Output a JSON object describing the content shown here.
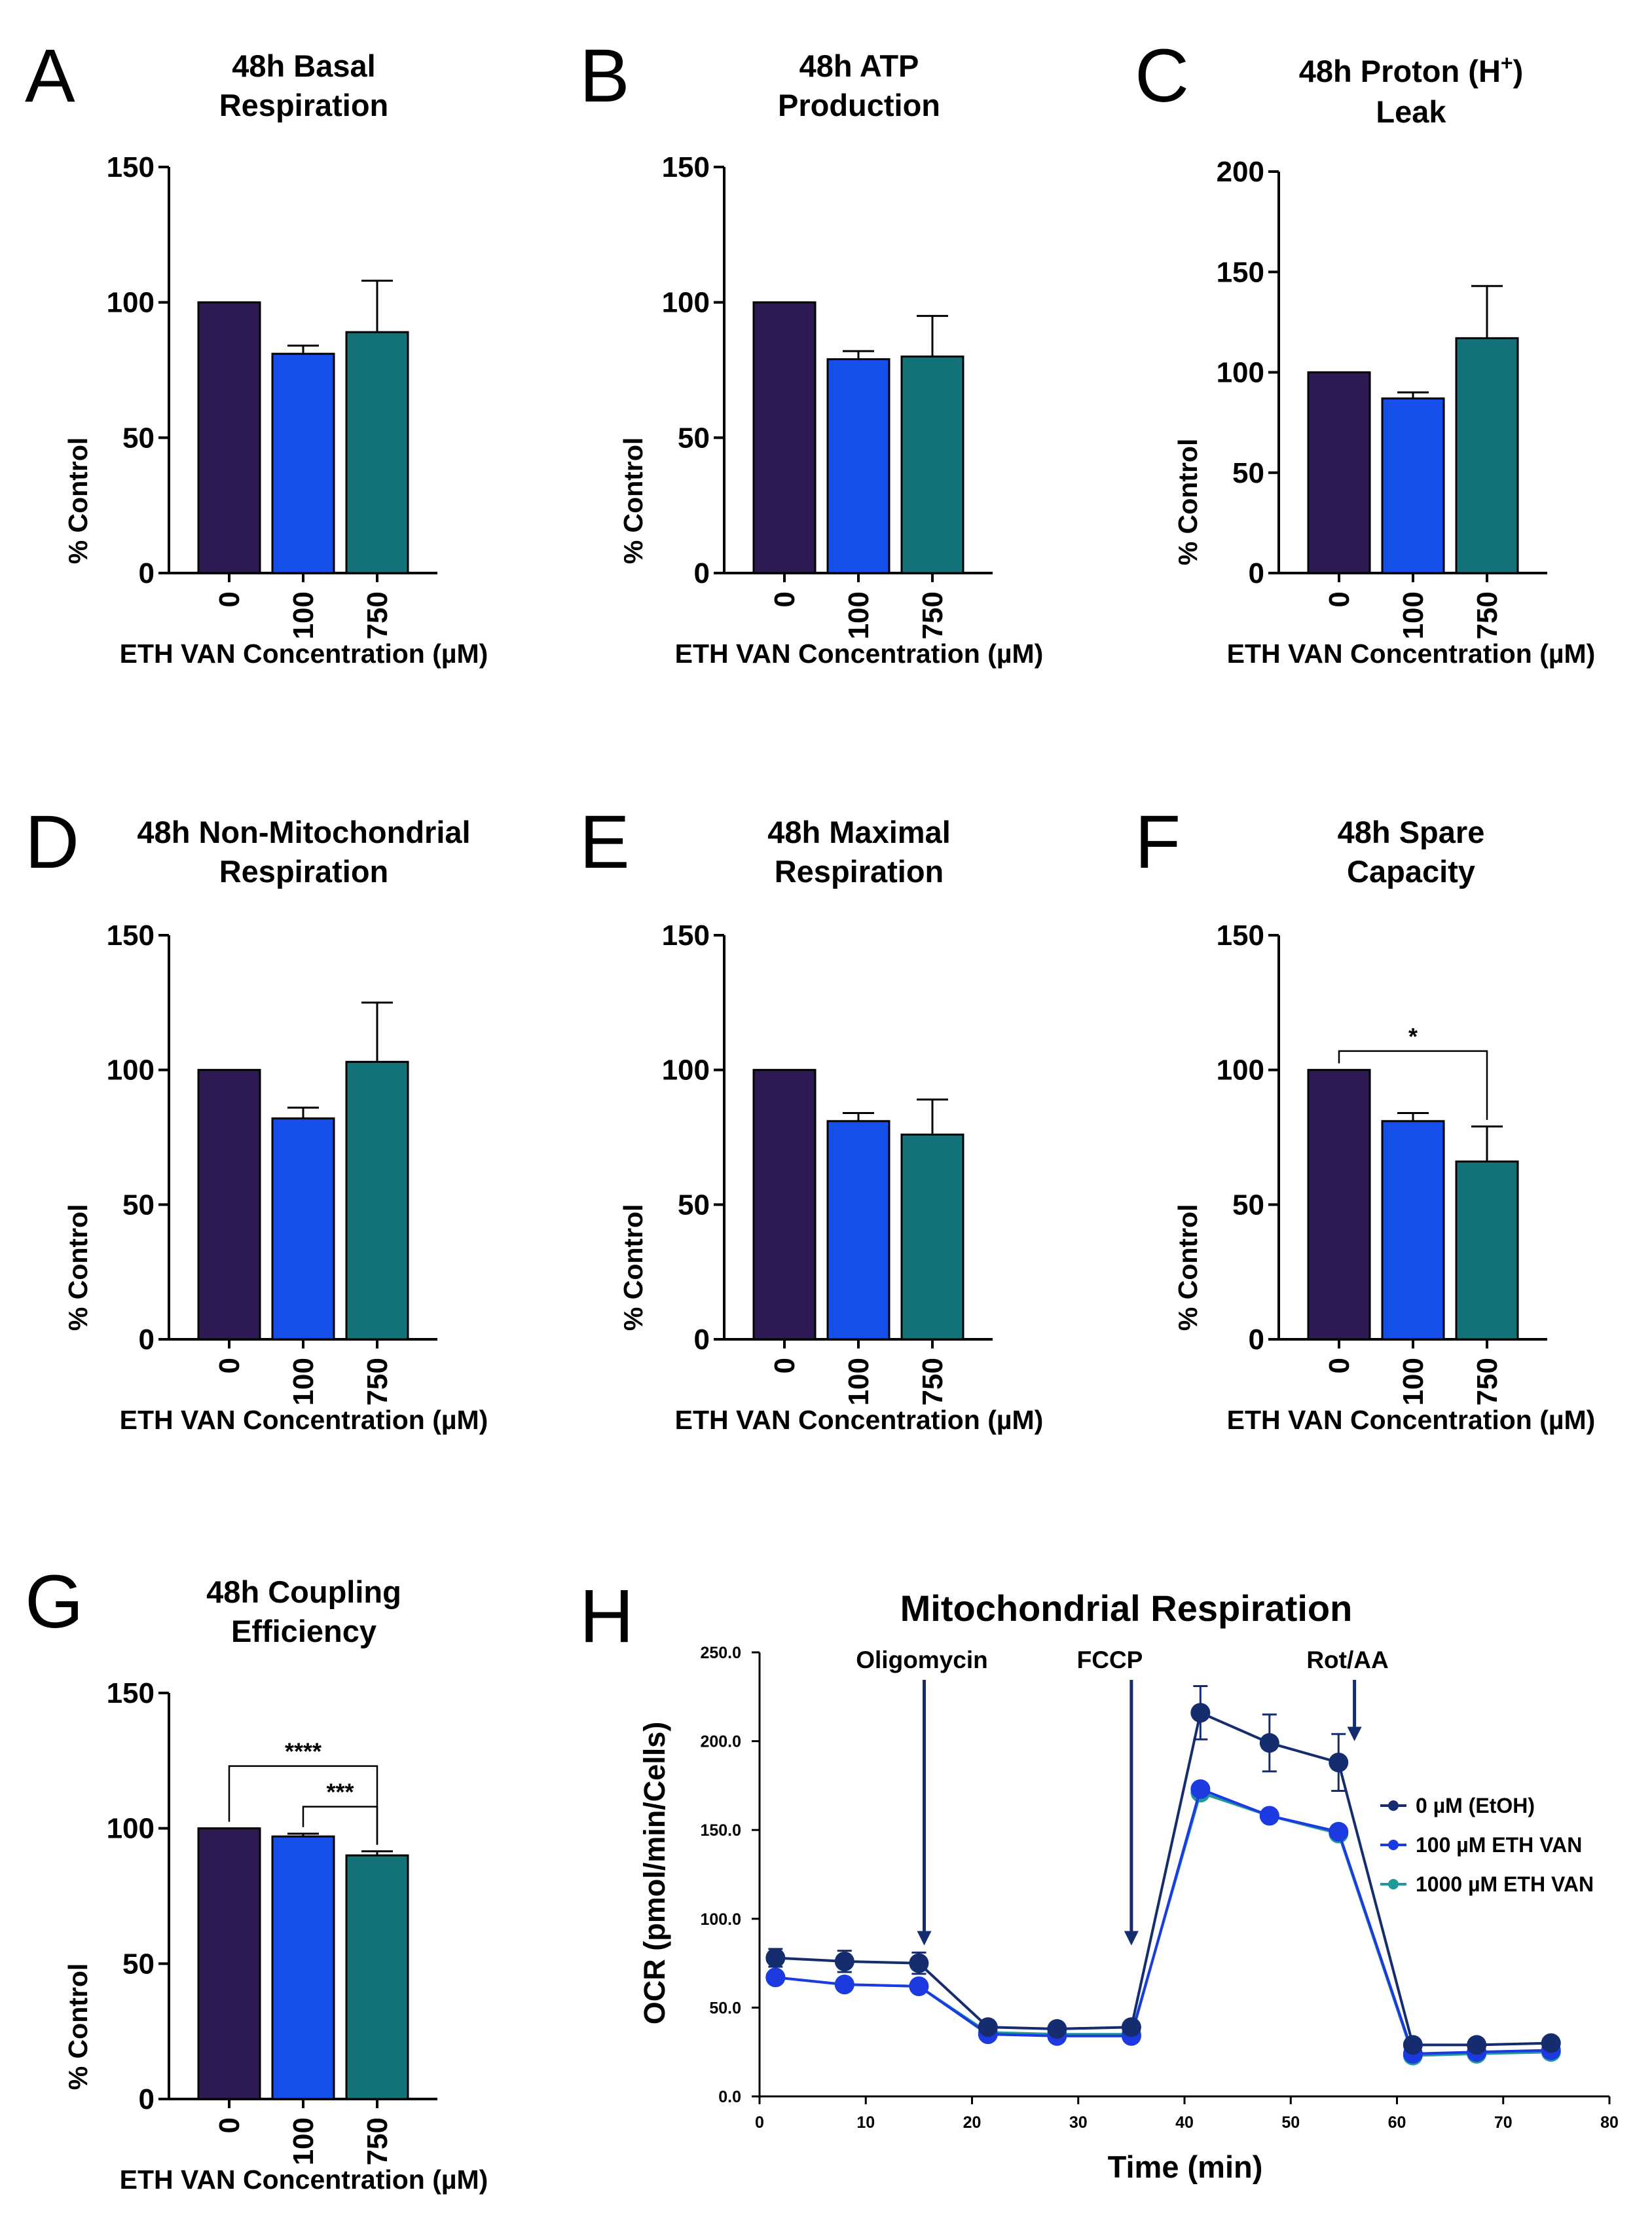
{
  "colors": {
    "c0": "#2e1a52",
    "c100": "#1650eb",
    "c750": "#127278",
    "h0": "#152c6e",
    "h100": "#1d3ae0",
    "h1000": "#1e9a9a"
  },
  "chart_data": [
    {
      "type": "bar",
      "panel": "A",
      "title_lines": [
        "48h Basal",
        "Respiration"
      ],
      "ylabel": "% Control",
      "xlabel": "ETH VAN Concentration (µM)",
      "categories": [
        "0",
        "100",
        "750"
      ],
      "values": [
        100,
        81,
        89
      ],
      "errors": [
        0,
        3,
        19
      ],
      "ylim": [
        0,
        150
      ],
      "yticks": [
        "0",
        "50",
        "100",
        "150"
      ],
      "significance": []
    },
    {
      "type": "bar",
      "panel": "B",
      "title_lines": [
        "48h ATP",
        "Production"
      ],
      "ylabel": "% Control",
      "xlabel": "ETH VAN Concentration (µM)",
      "categories": [
        "0",
        "100",
        "750"
      ],
      "values": [
        100,
        79,
        80
      ],
      "errors": [
        0,
        3,
        15
      ],
      "ylim": [
        0,
        150
      ],
      "yticks": [
        "0",
        "50",
        "100",
        "150"
      ],
      "significance": []
    },
    {
      "type": "bar",
      "panel": "C",
      "title_lines": [
        "48h Proton (H",
        "Leak"
      ],
      "title_sup": "+",
      "title_suffix": ")",
      "ylabel": "% Control",
      "xlabel": "ETH VAN Concentration (µM)",
      "categories": [
        "0",
        "100",
        "750"
      ],
      "values": [
        100,
        87,
        117
      ],
      "errors": [
        0,
        3,
        26
      ],
      "ylim": [
        0,
        200
      ],
      "yticks": [
        "0",
        "50",
        "100",
        "150",
        "200"
      ],
      "significance": []
    },
    {
      "type": "bar",
      "panel": "D",
      "title_lines": [
        "48h Non-Mitochondrial",
        "Respiration"
      ],
      "ylabel": "% Control",
      "xlabel": "ETH VAN Concentration (µM)",
      "categories": [
        "0",
        "100",
        "750"
      ],
      "values": [
        100,
        82,
        103
      ],
      "errors": [
        0,
        4,
        22
      ],
      "ylim": [
        0,
        150
      ],
      "yticks": [
        "0",
        "50",
        "100",
        "150"
      ],
      "significance": []
    },
    {
      "type": "bar",
      "panel": "E",
      "title_lines": [
        "48h Maximal",
        "Respiration"
      ],
      "ylabel": "% Control",
      "xlabel": "ETH VAN Concentration (µM)",
      "categories": [
        "0",
        "100",
        "750"
      ],
      "values": [
        100,
        81,
        76
      ],
      "errors": [
        0,
        3,
        13
      ],
      "ylim": [
        0,
        150
      ],
      "yticks": [
        "0",
        "50",
        "100",
        "150"
      ],
      "significance": []
    },
    {
      "type": "bar",
      "panel": "F",
      "title_lines": [
        "48h Spare",
        "Capacity"
      ],
      "ylabel": "% Control",
      "xlabel": "ETH VAN Concentration (µM)",
      "categories": [
        "0",
        "100",
        "750"
      ],
      "values": [
        100,
        81,
        66
      ],
      "errors": [
        0,
        3,
        13
      ],
      "ylim": [
        0,
        150
      ],
      "yticks": [
        "0",
        "50",
        "100",
        "150"
      ],
      "significance": [
        {
          "from": 0,
          "to": 2,
          "y": 107,
          "label": "*"
        }
      ]
    },
    {
      "type": "bar",
      "panel": "G",
      "title_lines": [
        "48h Coupling",
        "Efficiency"
      ],
      "ylabel": "% Control",
      "xlabel": "ETH VAN Concentration (µM)",
      "categories": [
        "0",
        "100",
        "750"
      ],
      "values": [
        100,
        97,
        90
      ],
      "errors": [
        0,
        1,
        1.5
      ],
      "ylim": [
        0,
        150
      ],
      "yticks": [
        "0",
        "50",
        "100",
        "150"
      ],
      "significance": [
        {
          "from": 0,
          "to": 2,
          "y": 123,
          "label": "****"
        },
        {
          "from": 1,
          "to": 2,
          "y": 108,
          "label": "***"
        }
      ]
    },
    {
      "type": "line",
      "panel": "H",
      "title": "Mitochondrial Respiration",
      "xlabel": "Time (min)",
      "ylabel": "OCR (pmol/min/Cells)",
      "xlim": [
        0,
        80
      ],
      "ylim": [
        0,
        250
      ],
      "xticks": [
        "0",
        "10",
        "20",
        "30",
        "40",
        "50",
        "60",
        "70",
        "80"
      ],
      "yticks": [
        "0.0",
        "50.0",
        "100.0",
        "150.0",
        "200.0",
        "250.0"
      ],
      "x": [
        1.5,
        8,
        15,
        21.5,
        28,
        35,
        41.5,
        48,
        54.5,
        61.5,
        67.5,
        74.5
      ],
      "series": [
        {
          "name": "0 µM (EtOH)",
          "values": [
            78,
            76,
            75,
            39,
            38,
            39,
            216,
            199,
            188,
            29,
            29,
            30
          ],
          "errors": [
            5,
            6,
            6,
            2,
            2,
            2,
            15,
            16,
            16,
            2,
            2,
            2
          ]
        },
        {
          "name": "100 µM ETH VAN",
          "values": [
            67,
            63,
            62,
            35,
            34,
            34,
            173,
            158,
            149,
            24,
            25,
            26
          ],
          "errors": [
            0,
            0,
            0,
            0,
            0,
            0,
            0,
            0,
            0,
            0,
            0,
            0
          ]
        },
        {
          "name": "1000 µM ETH VAN",
          "values": [
            67,
            63,
            62,
            36,
            35,
            35,
            171,
            158,
            148,
            23,
            24,
            25
          ],
          "errors": [
            0,
            0,
            0,
            0,
            0,
            0,
            0,
            0,
            0,
            0,
            0,
            0
          ]
        }
      ],
      "annotations": [
        {
          "label": "Oligomycin",
          "x": 15.5
        },
        {
          "label": "FCCP",
          "x": 35
        },
        {
          "label": "Rot/AA",
          "x": 56
        }
      ]
    }
  ]
}
